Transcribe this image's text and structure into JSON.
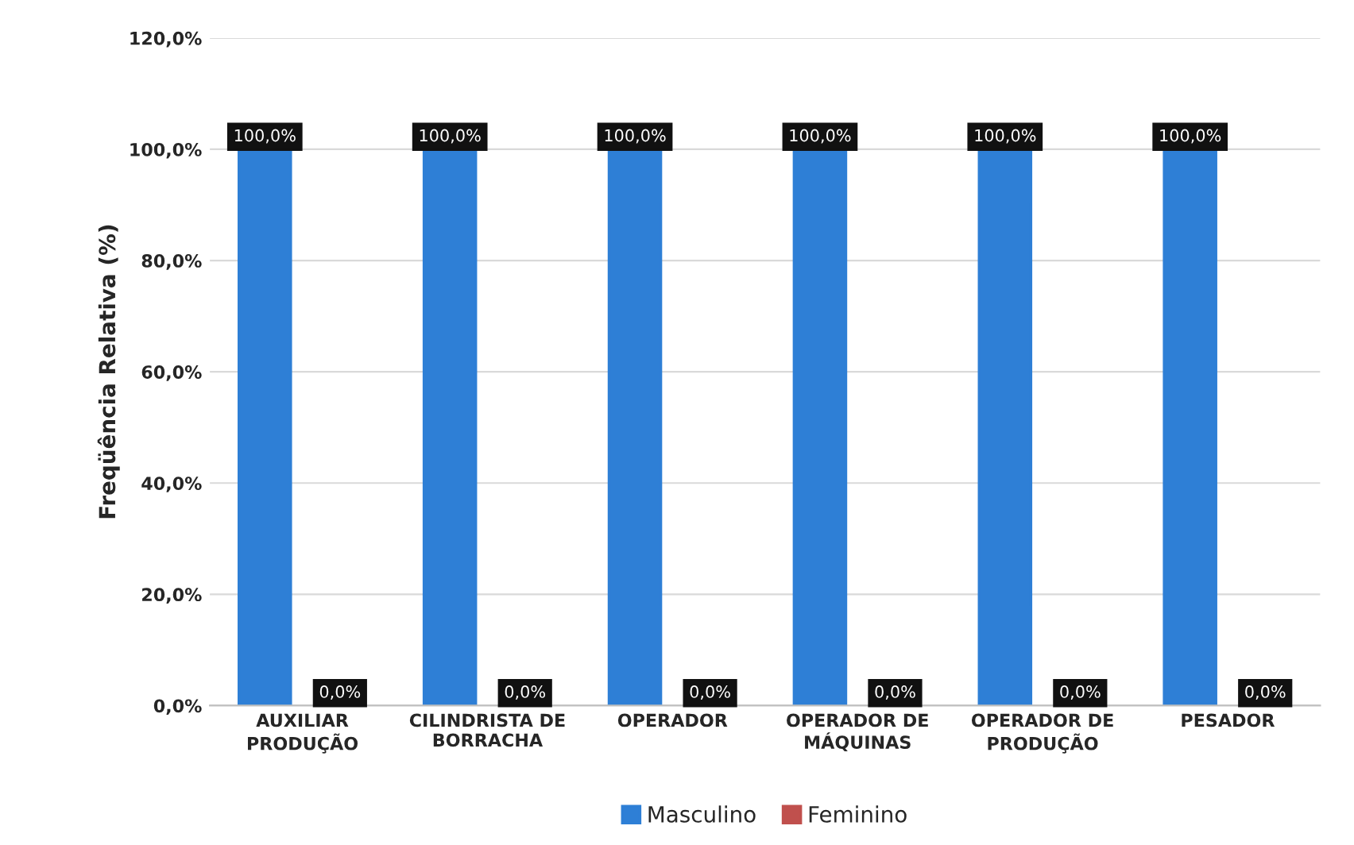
{
  "chart_data": {
    "type": "bar",
    "categories": [
      "AUXILIAR\nPRODUÇÃO",
      "CILINDRISTA DE\nBORRACHA",
      "OPERADOR",
      "OPERADOR DE\nMÁQUINAS",
      "OPERADOR DE\nPRODUÇÃO",
      "PESADOR"
    ],
    "ylabel": "Freqüência Relativa (%)",
    "series": [
      {
        "name": "Masculino",
        "color": "#2e7fd6",
        "values": [
          100,
          100,
          100,
          100,
          100,
          100
        ],
        "value_labels": [
          "100,0%",
          "100,0%",
          "100,0%",
          "100,0%",
          "100,0%",
          "100,0%"
        ]
      },
      {
        "name": "Feminino",
        "color": "#c0504d",
        "values": [
          0,
          0,
          0,
          0,
          0,
          0
        ],
        "value_labels": [
          "0,0%",
          "0,0%",
          "0,0%",
          "0,0%",
          "0,0%",
          "0,0%"
        ]
      }
    ],
    "ylim": [
      0,
      120
    ],
    "yticks": [
      {
        "value": 0,
        "label": "0,0%"
      },
      {
        "value": 20,
        "label": "20,0%"
      },
      {
        "value": 40,
        "label": "40,0%"
      },
      {
        "value": 60,
        "label": "60,0%"
      },
      {
        "value": 80,
        "label": "80,0%"
      },
      {
        "value": 100,
        "label": "100,0%"
      },
      {
        "value": 120,
        "label": "120,0%"
      }
    ],
    "grid": "y",
    "legend": "bottom"
  }
}
